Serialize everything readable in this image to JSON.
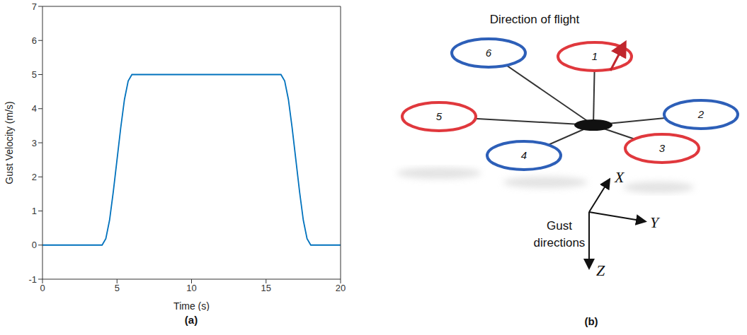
{
  "chart_data": {
    "type": "line",
    "x_label": "Time (s)",
    "y_label": "Gust Velocity (m/s)",
    "x": [
      0,
      4,
      4.25,
      4.5,
      4.75,
      5,
      5.25,
      5.5,
      5.75,
      6,
      16,
      16.25,
      16.5,
      16.75,
      17,
      17.25,
      17.5,
      17.75,
      18,
      20
    ],
    "values": [
      0,
      0,
      0.19,
      0.73,
      1.56,
      2.5,
      3.44,
      4.27,
      4.81,
      5,
      5,
      4.81,
      4.27,
      3.44,
      2.5,
      1.56,
      0.73,
      0.19,
      0,
      0
    ],
    "color": "#0072bd",
    "xlim": [
      0,
      20
    ],
    "ylim": [
      -1,
      7
    ],
    "xticks": [
      0,
      5,
      10,
      15,
      20
    ],
    "yticks": [
      -1,
      0,
      1,
      2,
      3,
      4,
      5,
      6,
      7
    ]
  },
  "panels": {
    "a": "(a)",
    "b": "(b)"
  },
  "diagram": {
    "arrow_label": "Direction of flight",
    "rotors": [
      {
        "label": "1",
        "color": "#e0383d"
      },
      {
        "label": "2",
        "color": "#2d5fb8"
      },
      {
        "label": "3",
        "color": "#e0383d"
      },
      {
        "label": "4",
        "color": "#2d5fb8"
      },
      {
        "label": "5",
        "color": "#e0383d"
      },
      {
        "label": "6",
        "color": "#2d5fb8"
      }
    ],
    "axes": {
      "x": "X",
      "y": "Y",
      "z": "Z"
    },
    "axes_title": "Gust directions"
  }
}
